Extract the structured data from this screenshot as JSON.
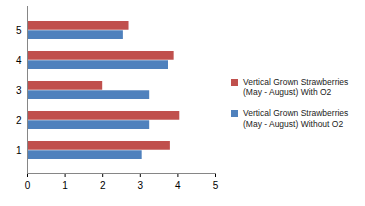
{
  "chart_data": {
    "type": "bar",
    "orientation": "horizontal",
    "categories": [
      "1",
      "2",
      "3",
      "4",
      "5"
    ],
    "series": [
      {
        "name": "Vertical Grown Strawberries (May - August) With O2",
        "color": "#c0504d",
        "values": [
          3.8,
          4.05,
          2.0,
          3.9,
          2.7
        ]
      },
      {
        "name": "Vertical Grown Strawberries (May - August) Without O2",
        "color": "#4f81bd",
        "values": [
          3.05,
          3.25,
          3.25,
          3.75,
          2.55
        ]
      }
    ],
    "xlim": [
      0,
      5
    ],
    "xticks": [
      0,
      1,
      2,
      3,
      4,
      5
    ],
    "grid": false,
    "legend": "right"
  }
}
